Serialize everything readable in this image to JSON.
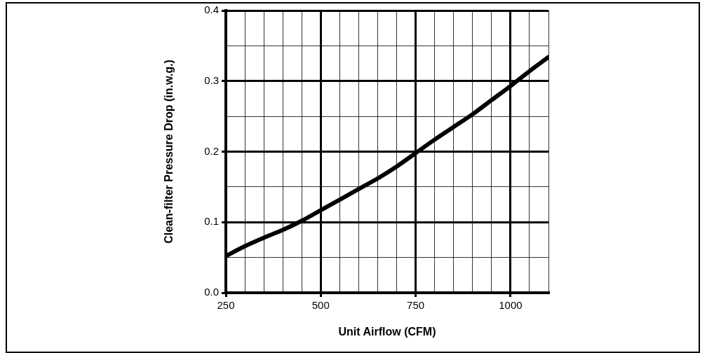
{
  "chart_data": {
    "type": "line",
    "xlabel": "Unit Airflow (CFM)",
    "ylabel": "Clean-filter Pressure Drop (in.w.g.)",
    "x": [
      250,
      300,
      350,
      400,
      450,
      500,
      550,
      600,
      650,
      700,
      750,
      800,
      850,
      900,
      950,
      1000,
      1050,
      1100
    ],
    "series": [
      {
        "color": "#000000",
        "values": [
          0.052,
          0.066,
          0.078,
          0.089,
          0.102,
          0.117,
          0.132,
          0.147,
          0.162,
          0.179,
          0.198,
          0.217,
          0.235,
          0.253,
          0.273,
          0.293,
          0.314,
          0.334
        ]
      }
    ],
    "xlim": [
      250,
      1100
    ],
    "xticks": [
      250,
      {
        "value": 300,
        "label": null
      },
      {
        "value": 350,
        "label": null
      },
      {
        "value": 400,
        "label": null
      },
      {
        "value": 450,
        "label": null
      },
      500,
      {
        "value": 550,
        "label": null
      },
      {
        "value": 600,
        "label": null
      },
      {
        "value": 650,
        "label": null
      },
      {
        "value": 700,
        "label": null
      },
      750,
      {
        "value": 800,
        "label": null
      },
      {
        "value": 850,
        "label": null
      },
      {
        "value": 900,
        "label": null
      },
      {
        "value": 950,
        "label": null
      },
      1000,
      {
        "value": 1050,
        "label": null
      },
      {
        "value": 1100,
        "label": null
      }
    ],
    "ylim": [
      0,
      0.4
    ],
    "yticks": [
      {
        "value": 0,
        "label": "0.0"
      },
      {
        "value": 0.05,
        "label": null
      },
      0.1,
      {
        "value": 0.15,
        "label": null
      },
      0.2,
      {
        "value": 0.25,
        "label": null
      },
      0.3,
      {
        "value": 0.35,
        "label": null
      },
      0.4
    ],
    "grid": true,
    "legend": false,
    "marker": "none",
    "line_style": "solid"
  }
}
